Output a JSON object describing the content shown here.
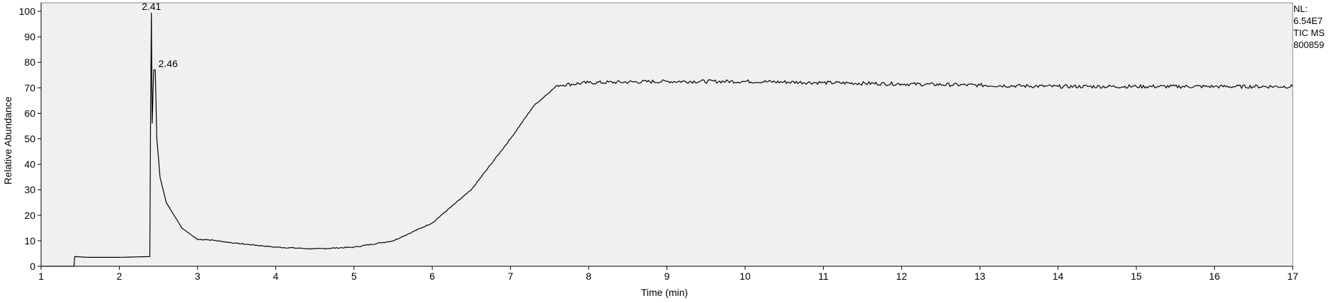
{
  "chart_data": {
    "type": "line",
    "xlabel": "Time (min)",
    "ylabel": "Relative Abundance",
    "xlim": [
      1,
      17
    ],
    "ylim": [
      0,
      100
    ],
    "x_ticks": [
      "1",
      "2",
      "3",
      "4",
      "5",
      "6",
      "7",
      "8",
      "9",
      "10",
      "11",
      "12",
      "13",
      "14",
      "15",
      "16",
      "17"
    ],
    "y_ticks": [
      "0",
      "10",
      "20",
      "30",
      "40",
      "50",
      "60",
      "70",
      "80",
      "90",
      "100"
    ],
    "grid": false,
    "background_color": "#f0f0f0",
    "line_color": "#000000",
    "series": [
      {
        "x": [
          1.0,
          1.42,
          1.43,
          1.6,
          2.0,
          2.39,
          2.4,
          2.41,
          2.42,
          2.44,
          2.46,
          2.48,
          2.52,
          2.6,
          2.8,
          3.0,
          3.1,
          3.2,
          3.5,
          4.0,
          4.5,
          5.0,
          5.5,
          6.0,
          6.5,
          7.0,
          7.3,
          7.6,
          8.0,
          9.0,
          10.0,
          11.0,
          12.0,
          13.0,
          14.0,
          15.0,
          16.0,
          17.0
        ],
        "y": [
          0,
          0,
          3.8,
          3.5,
          3.5,
          3.8,
          60,
          99.5,
          56,
          77,
          77,
          50,
          35,
          25,
          15,
          10.5,
          10.5,
          10.2,
          9,
          7.5,
          6.8,
          7.5,
          10,
          17,
          30,
          50,
          63,
          71,
          72,
          72.5,
          72.5,
          72,
          71.5,
          71,
          70.5,
          70.5,
          70.5,
          70.5
        ]
      }
    ],
    "peak_labels": [
      {
        "x": 2.41,
        "y": 99.5,
        "text": "2.41"
      },
      {
        "x": 2.46,
        "y": 77,
        "text": "2.46"
      }
    ]
  },
  "info": {
    "nl_label": "NL:",
    "nl_value": "6.54E7",
    "trace": "TIC  MS",
    "file": "800859"
  }
}
